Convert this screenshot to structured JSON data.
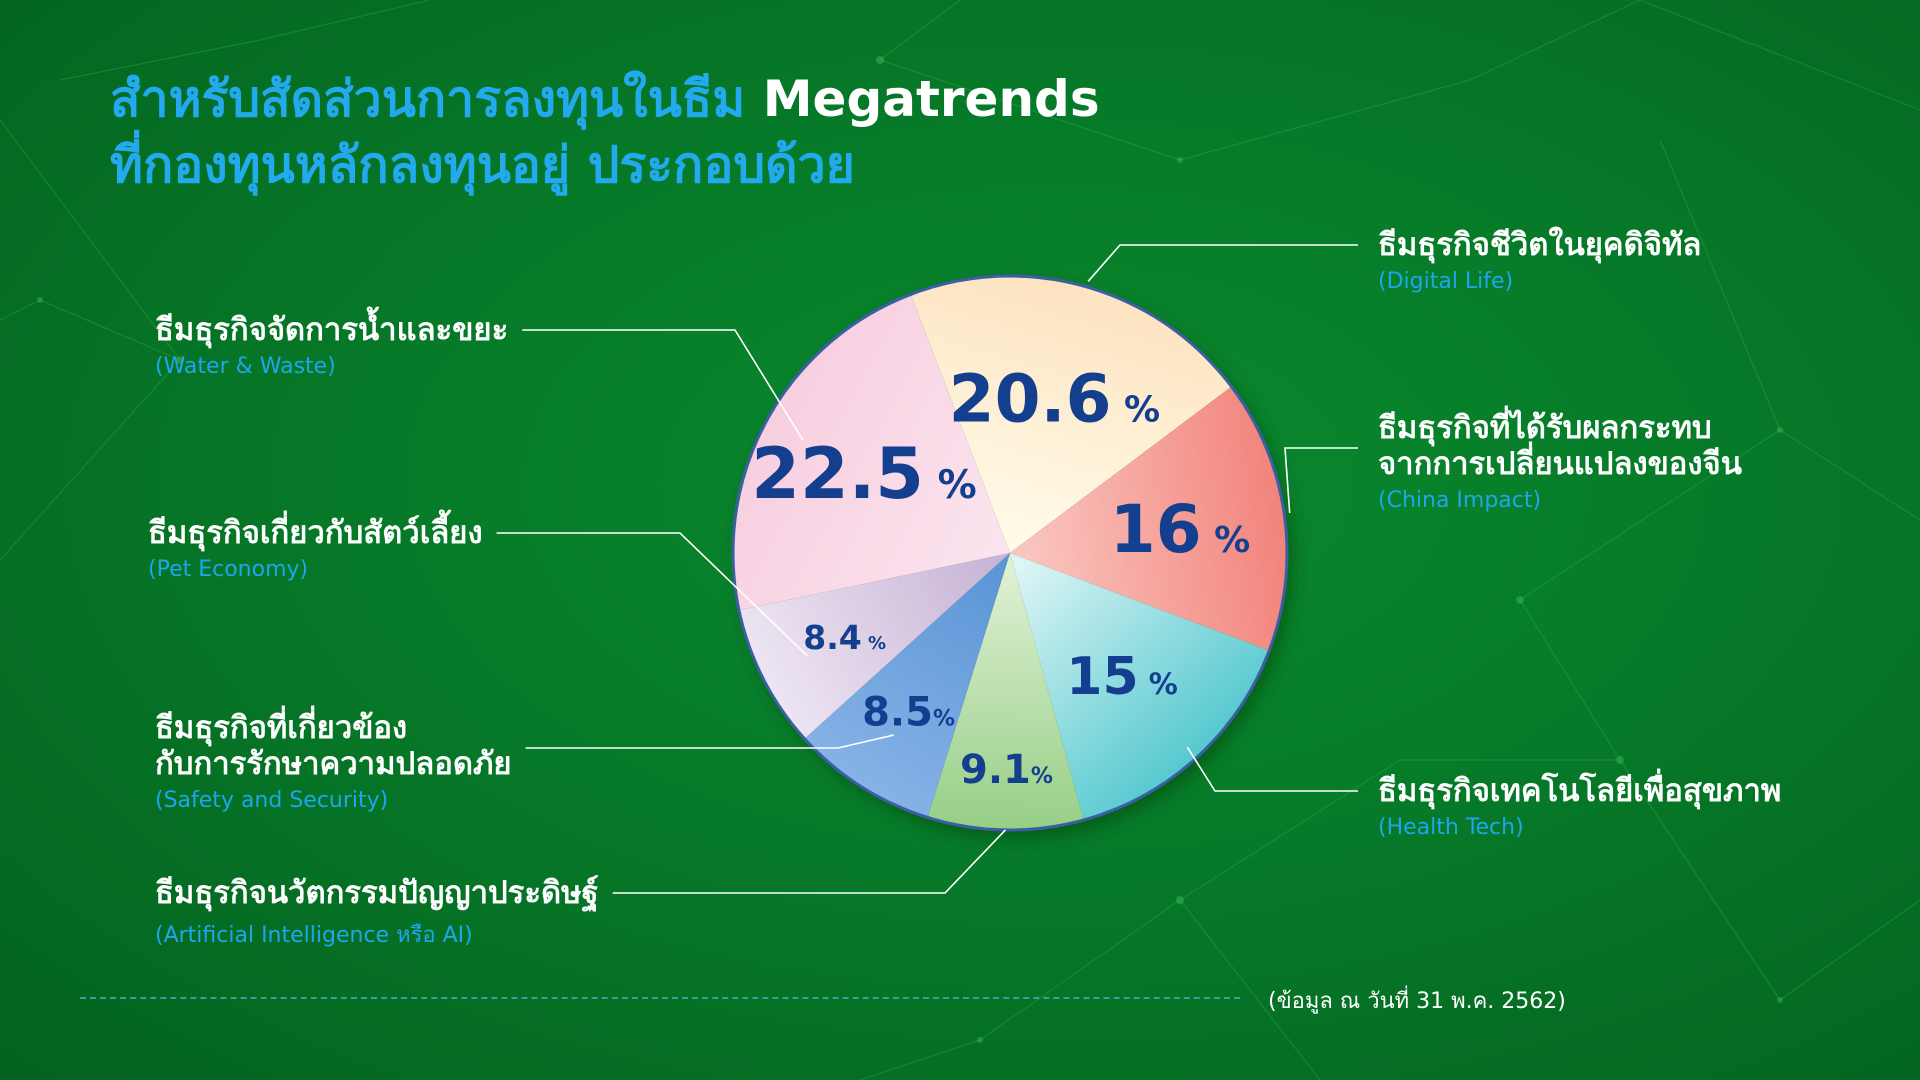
{
  "title": {
    "line1_thai": "สำหรับสัดส่วนการลงทุนในธีม ",
    "line1_em": "Megatrends",
    "line2": "ที่กองทุนหลักลงทุนอยู่  ประกอบด้วย"
  },
  "footer_note": "(ข้อมูล ณ วันที่ 31 พ.ค. 2562)",
  "colors": {
    "title": "#22a9ee",
    "label_value": "#143f8f",
    "legend_en": "#1ea6ec"
  },
  "chart_data": {
    "type": "pie",
    "unit": "%",
    "slices": [
      {
        "label": "ธีมธุรกิจชีวิตในยุคดิจิทัล",
        "label_en": "(Digital Life)",
        "value": 20.6,
        "display": "20.6",
        "display_unit": " %",
        "colors": [
          "#fffbe8",
          "#fde3c0"
        ]
      },
      {
        "label": [
          "ธีมธุรกิจที่ได้รับผลกระทบ",
          "จากการเปลี่ยนแปลงของจีน"
        ],
        "label_en": "(China Impact)",
        "value": 16,
        "display": "16",
        "display_unit": " %",
        "colors": [
          "#f9c6bf",
          "#f2837b"
        ]
      },
      {
        "label": "ธีมธุรกิจเทคโนโลยีเพื่อสุขภาพ",
        "label_en": "(Health Tech)",
        "value": 15,
        "display": "15",
        "display_unit": " %",
        "colors": [
          "#def5f5",
          "#55c9cf"
        ]
      },
      {
        "label": "ธีมธุรกิจนวัตกรรมปัญญาประดิษฐ์",
        "label_en": "(Artificial Intelligence หรือ AI)",
        "value": 9.1,
        "display": "9.1",
        "display_unit": "%",
        "colors": [
          "#dff0d4",
          "#96cf86"
        ]
      },
      {
        "label": [
          "ธีมธุรกิจที่เกี่ยวข้อง",
          "กับการรักษาความปลอดภัย"
        ],
        "label_en": "(Safety and Security)",
        "value": 8.5,
        "display": "8.5",
        "display_unit": "%",
        "colors": [
          "#5b95d6",
          "#86b2e6"
        ]
      },
      {
        "label": "ธีมธุรกิจเกี่ยวกับสัตว์เลี้ยง",
        "label_en": "(Pet Economy)",
        "value": 8.4,
        "display": "8.4",
        "display_unit": " %",
        "colors": [
          "#c7b4d6",
          "#ede5f2"
        ]
      },
      {
        "label": "ธีมธุรกิจจัดการน้ำและขยะ",
        "label_en": "(Water & Waste)",
        "value": 22.5,
        "display": "22.5",
        "display_unit": " %",
        "colors": [
          "#fbe4ee",
          "#f7cfe0"
        ]
      }
    ]
  }
}
